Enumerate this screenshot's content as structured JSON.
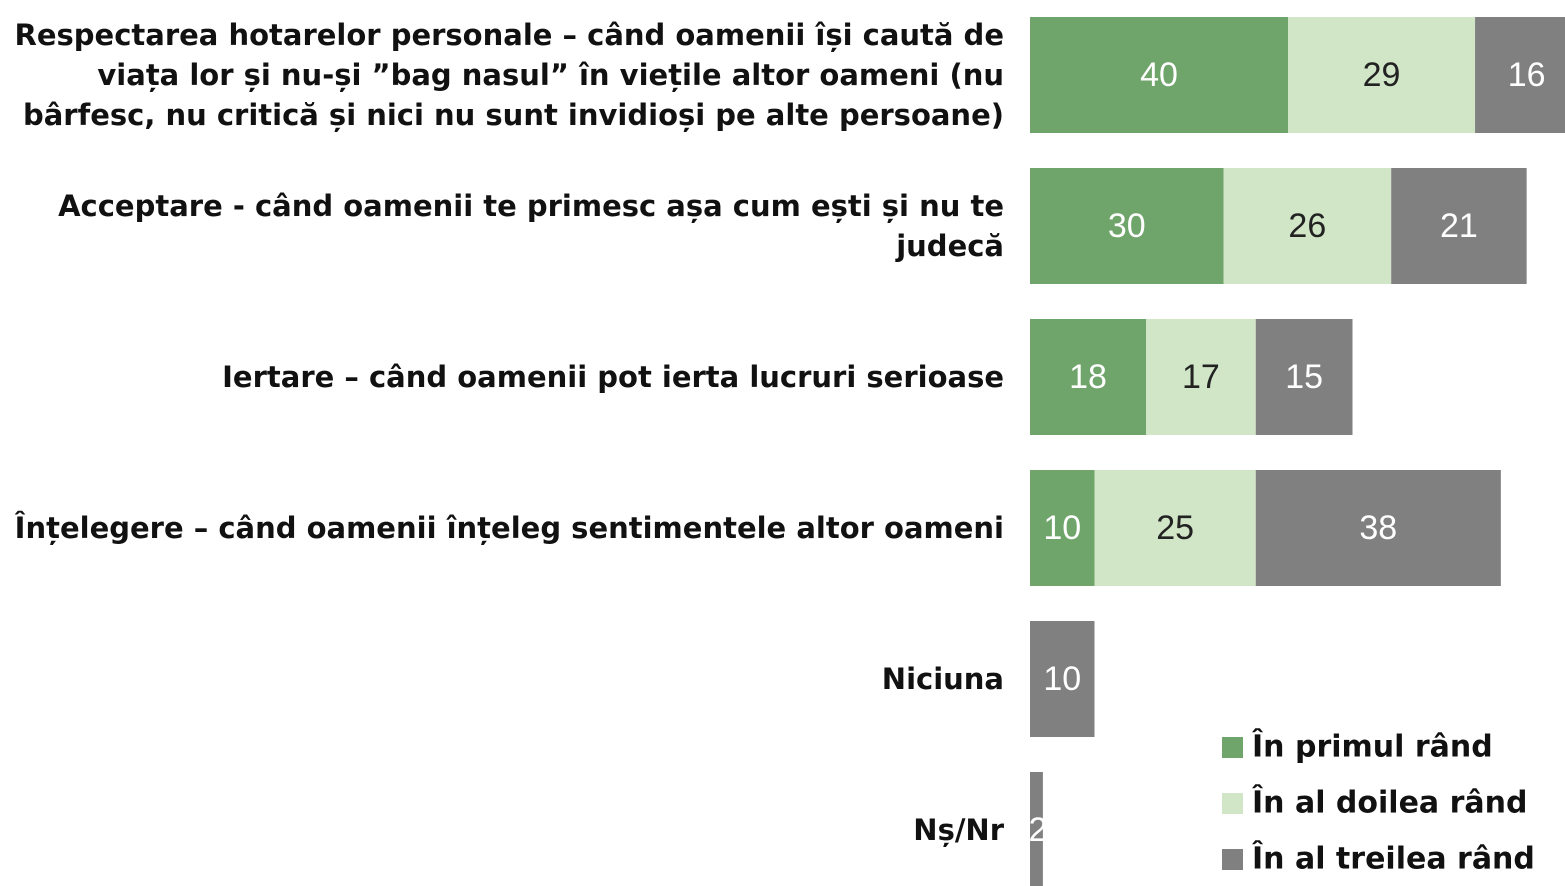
{
  "chart_data": {
    "type": "stacked_bar_horizontal",
    "categories": [
      "Respectarea hotarelor personale –  când oamenii își caută de viața lor și nu-și ”bag nasul” în viețile altor oameni (nu bârfesc, nu critică și nici nu sunt invidioși pe alte persoane)",
      "Acceptare - când oamenii te primesc așa cum ești și nu te judecă",
      "Iertare – când oamenii pot ierta lucruri serioase",
      "Înțelegere – când oamenii înțeleg sentimentele altor oameni",
      "Niciuna",
      "Nș/Nr"
    ],
    "series": [
      {
        "name": "În primul rând",
        "color": "#6fa56b",
        "values": [
          40,
          30,
          18,
          10,
          null,
          null
        ]
      },
      {
        "name": "În al doilea rând",
        "color": "#d0e6c6",
        "values": [
          29,
          26,
          17,
          25,
          null,
          null
        ]
      },
      {
        "name": "În al treilea rând",
        "color": "#808080",
        "values": [
          16,
          21,
          15,
          38,
          10,
          2
        ]
      }
    ],
    "legend": "lower-right"
  }
}
